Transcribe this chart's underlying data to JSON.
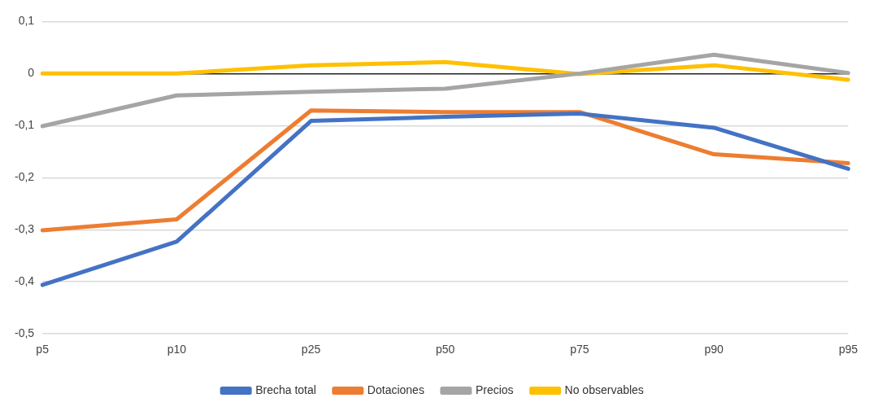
{
  "chart_data": {
    "type": "line",
    "categories": [
      "p5",
      "p10",
      "p25",
      "p50",
      "p75",
      "p90",
      "p95"
    ],
    "series": [
      {
        "name": "Brecha total",
        "color": "#4472c4",
        "values": [
          -0.406,
          -0.323,
          -0.091,
          -0.083,
          -0.077,
          -0.104,
          -0.183
        ]
      },
      {
        "name": "Dotaciones",
        "color": "#ed7d31",
        "values": [
          -0.301,
          -0.28,
          -0.071,
          -0.074,
          -0.074,
          -0.155,
          -0.172
        ]
      },
      {
        "name": "Precios",
        "color": "#a5a5a5",
        "values": [
          -0.101,
          -0.042,
          -0.035,
          -0.029,
          0,
          0.036,
          0.001
        ]
      },
      {
        "name": "No observables",
        "color": "#ffc000",
        "values": [
          0,
          0,
          0.016,
          0.022,
          -0.001,
          0.016,
          -0.012
        ]
      }
    ],
    "ylim": [
      -0.5,
      0.1
    ],
    "yticks": [
      {
        "value": -0.5,
        "label": "-0,5"
      },
      {
        "value": -0.4,
        "label": "-0,4"
      },
      {
        "value": -0.3,
        "label": "-0,3"
      },
      {
        "value": -0.2,
        "label": "-0,2"
      },
      {
        "value": -0.1,
        "label": "-0,1"
      },
      {
        "value": 0,
        "label": "0"
      },
      {
        "value": 0.1,
        "label": "0,1"
      }
    ],
    "grid": "y",
    "legend": "bottom",
    "marker": "none",
    "line_style": "solid"
  }
}
